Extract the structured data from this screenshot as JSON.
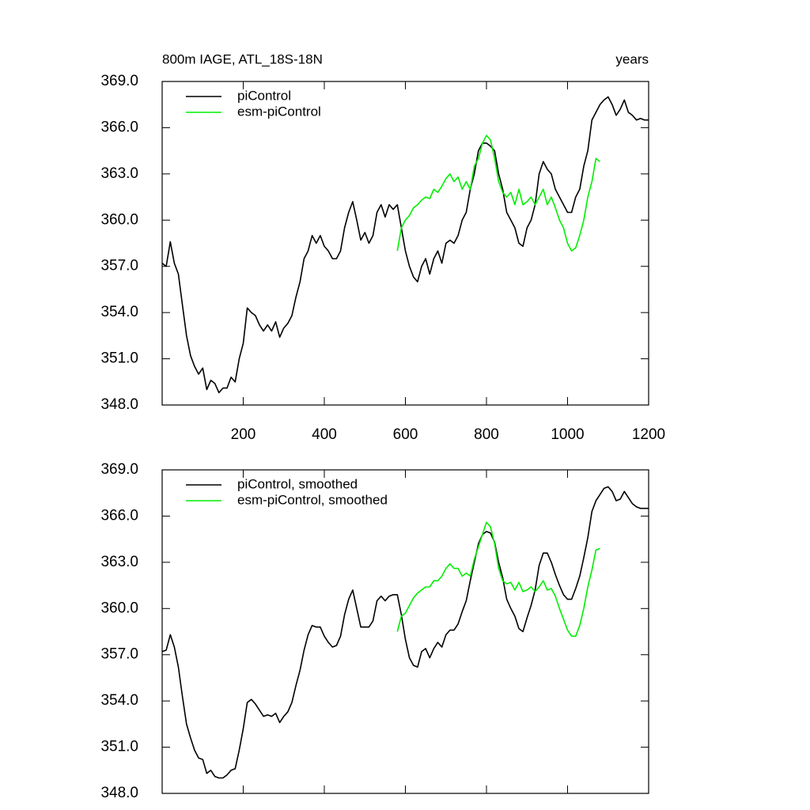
{
  "chart_data": [
    {
      "type": "line",
      "title": "800m IAGE, ATL_18S-18N",
      "x_label": "years",
      "legend": "upper left",
      "xlim": [
        0,
        1200
      ],
      "xticks": [
        200,
        400,
        600,
        800,
        1000,
        1200
      ],
      "xtick_labels": true,
      "ylim": [
        348,
        369
      ],
      "yticks": [
        {
          "value": 348,
          "label": "348.0"
        },
        {
          "value": 351,
          "label": "351.0"
        },
        {
          "value": 354,
          "label": "354.0"
        },
        {
          "value": 357,
          "label": "357.0"
        },
        {
          "value": 360,
          "label": "360.0"
        },
        {
          "value": 363,
          "label": "363.0"
        },
        {
          "value": 366,
          "label": "366.0"
        },
        {
          "value": 369,
          "label": "369.0"
        }
      ],
      "x": [
        0,
        10,
        20,
        30,
        40,
        50,
        60,
        70,
        80,
        90,
        100,
        110,
        120,
        130,
        140,
        150,
        160,
        170,
        180,
        190,
        200,
        210,
        220,
        230,
        240,
        250,
        260,
        270,
        280,
        290,
        300,
        310,
        320,
        330,
        340,
        350,
        360,
        370,
        380,
        390,
        400,
        410,
        420,
        430,
        440,
        450,
        460,
        470,
        480,
        490,
        500,
        510,
        520,
        530,
        540,
        550,
        560,
        570,
        580,
        590,
        600,
        610,
        620,
        630,
        640,
        650,
        660,
        670,
        680,
        690,
        700,
        710,
        720,
        730,
        740,
        750,
        760,
        770,
        780,
        790,
        800,
        810,
        820,
        830,
        840,
        850,
        860,
        870,
        880,
        890,
        900,
        910,
        920,
        930,
        940,
        950,
        960,
        970,
        980,
        990,
        1000,
        1010,
        1020,
        1030,
        1040,
        1050,
        1060,
        1070,
        1080,
        1090,
        1100,
        1110,
        1120,
        1130,
        1140,
        1150,
        1160,
        1170,
        1180,
        1190,
        1200
      ],
      "series": [
        {
          "name": "piControl",
          "color": "#000000",
          "values": [
            357.2,
            357.0,
            358.6,
            357.2,
            356.5,
            354.5,
            352.5,
            351.2,
            350.5,
            350.0,
            350.4,
            349.0,
            349.6,
            349.4,
            348.8,
            349.1,
            349.1,
            349.8,
            349.5,
            351.0,
            352.0,
            354.3,
            354.0,
            353.8,
            353.2,
            352.8,
            353.2,
            352.8,
            353.4,
            352.4,
            353.0,
            353.3,
            353.8,
            355.0,
            356.0,
            357.5,
            358.0,
            359.0,
            358.5,
            359.0,
            358.3,
            358.0,
            357.5,
            357.5,
            358.0,
            359.5,
            360.5,
            361.2,
            360.0,
            358.7,
            359.2,
            358.5,
            359.0,
            360.5,
            361.0,
            360.2,
            361.0,
            360.7,
            361.0,
            359.5,
            358.0,
            357.0,
            356.3,
            356.0,
            357.0,
            357.5,
            356.5,
            357.5,
            358.0,
            357.2,
            358.5,
            358.7,
            358.5,
            359.0,
            360.0,
            360.5,
            362.0,
            363.0,
            364.5,
            365.0,
            365.0,
            364.8,
            364.5,
            363.0,
            362.0,
            360.5,
            360.0,
            359.5,
            358.5,
            358.3,
            359.5,
            360.0,
            361.0,
            363.0,
            363.8,
            363.3,
            363.0,
            362.0,
            361.5,
            361.0,
            360.5,
            360.5,
            361.5,
            362.0,
            363.5,
            364.5,
            366.5,
            367.0,
            367.5,
            367.8,
            368.0,
            367.5,
            366.8,
            367.2,
            367.8,
            367.0,
            366.8,
            366.5,
            366.6,
            366.5,
            366.5
          ]
        },
        {
          "name": "esm-piControl",
          "color": "#00ee00",
          "values": [
            null,
            null,
            null,
            null,
            null,
            null,
            null,
            null,
            null,
            null,
            null,
            null,
            null,
            null,
            null,
            null,
            null,
            null,
            null,
            null,
            null,
            null,
            null,
            null,
            null,
            null,
            null,
            null,
            null,
            null,
            null,
            null,
            null,
            null,
            null,
            null,
            null,
            null,
            null,
            null,
            null,
            null,
            null,
            null,
            null,
            null,
            null,
            null,
            null,
            null,
            null,
            null,
            null,
            null,
            null,
            null,
            null,
            null,
            358.0,
            359.5,
            360.0,
            360.3,
            360.8,
            361.0,
            361.3,
            361.5,
            361.4,
            362.0,
            361.8,
            362.2,
            362.7,
            363.0,
            362.5,
            362.8,
            362.0,
            362.5,
            362.0,
            363.5,
            364.0,
            365.0,
            365.5,
            365.2,
            364.0,
            362.5,
            361.8,
            361.5,
            361.8,
            361.0,
            362.0,
            361.0,
            361.2,
            361.5,
            361.0,
            361.5,
            362.0,
            361.0,
            361.5,
            360.8,
            360.0,
            359.5,
            358.5,
            358.0,
            358.2,
            359.0,
            360.0,
            361.5,
            362.5,
            364.0,
            363.8,
            null,
            null,
            null,
            null,
            null,
            null,
            null,
            null,
            null,
            null,
            null,
            null
          ]
        }
      ]
    },
    {
      "type": "line",
      "legend": "upper left",
      "xlim": [
        0,
        1200
      ],
      "xticks": [
        200,
        400,
        600,
        800,
        1000,
        1200
      ],
      "xtick_labels": false,
      "ylim": [
        348,
        369
      ],
      "yticks": [
        {
          "value": 348,
          "label": "348.0"
        },
        {
          "value": 351,
          "label": "351.0"
        },
        {
          "value": 354,
          "label": "354.0"
        },
        {
          "value": 357,
          "label": "357.0"
        },
        {
          "value": 360,
          "label": "360.0"
        },
        {
          "value": 363,
          "label": "363.0"
        },
        {
          "value": 366,
          "label": "366.0"
        },
        {
          "value": 369,
          "label": "369.0"
        }
      ],
      "x": [
        0,
        10,
        20,
        30,
        40,
        50,
        60,
        70,
        80,
        90,
        100,
        110,
        120,
        130,
        140,
        150,
        160,
        170,
        180,
        190,
        200,
        210,
        220,
        230,
        240,
        250,
        260,
        270,
        280,
        290,
        300,
        310,
        320,
        330,
        340,
        350,
        360,
        370,
        380,
        390,
        400,
        410,
        420,
        430,
        440,
        450,
        460,
        470,
        480,
        490,
        500,
        510,
        520,
        530,
        540,
        550,
        560,
        570,
        580,
        590,
        600,
        610,
        620,
        630,
        640,
        650,
        660,
        670,
        680,
        690,
        700,
        710,
        720,
        730,
        740,
        750,
        760,
        770,
        780,
        790,
        800,
        810,
        820,
        830,
        840,
        850,
        860,
        870,
        880,
        890,
        900,
        910,
        920,
        930,
        940,
        950,
        960,
        970,
        980,
        990,
        1000,
        1010,
        1020,
        1030,
        1040,
        1050,
        1060,
        1070,
        1080,
        1090,
        1100,
        1110,
        1120,
        1130,
        1140,
        1150,
        1160,
        1170,
        1180,
        1190,
        1200
      ],
      "series": [
        {
          "name": "piControl, smoothed",
          "color": "#000000",
          "values": [
            357.2,
            357.3,
            358.3,
            357.5,
            356.2,
            354.3,
            352.5,
            351.6,
            350.8,
            350.3,
            350.2,
            349.3,
            349.5,
            349.1,
            349.0,
            349.0,
            349.2,
            349.5,
            349.6,
            350.8,
            352.2,
            353.9,
            354.1,
            353.8,
            353.4,
            353.0,
            353.1,
            353.0,
            353.2,
            352.6,
            353.0,
            353.3,
            353.9,
            355.0,
            356.0,
            357.3,
            358.3,
            358.9,
            358.8,
            358.8,
            358.2,
            357.8,
            357.5,
            357.6,
            358.2,
            359.6,
            360.6,
            361.2,
            360.0,
            358.8,
            358.8,
            358.8,
            359.2,
            360.5,
            360.8,
            360.5,
            360.8,
            360.9,
            360.9,
            359.6,
            358.0,
            356.8,
            356.3,
            356.2,
            357.2,
            357.4,
            356.8,
            357.4,
            357.8,
            357.5,
            358.3,
            358.6,
            358.6,
            359.0,
            359.8,
            360.5,
            361.8,
            363.0,
            364.2,
            364.8,
            365.0,
            364.9,
            364.3,
            363.0,
            362.0,
            360.6,
            360.0,
            359.5,
            358.7,
            358.5,
            359.4,
            360.2,
            361.2,
            362.8,
            363.6,
            363.6,
            363.0,
            362.2,
            361.5,
            360.9,
            360.6,
            360.6,
            361.3,
            362.1,
            363.3,
            364.6,
            366.3,
            367.0,
            367.4,
            367.8,
            367.9,
            367.6,
            367.0,
            367.1,
            367.6,
            367.2,
            366.8,
            366.6,
            366.5,
            366.5,
            366.5
          ]
        },
        {
          "name": "esm-piControl, smoothed",
          "color": "#00ee00",
          "values": [
            null,
            null,
            null,
            null,
            null,
            null,
            null,
            null,
            null,
            null,
            null,
            null,
            null,
            null,
            null,
            null,
            null,
            null,
            null,
            null,
            null,
            null,
            null,
            null,
            null,
            null,
            null,
            null,
            null,
            null,
            null,
            null,
            null,
            null,
            null,
            null,
            null,
            null,
            null,
            null,
            null,
            null,
            null,
            null,
            null,
            null,
            null,
            null,
            null,
            null,
            null,
            null,
            null,
            null,
            null,
            null,
            null,
            null,
            358.5,
            359.5,
            359.7,
            360.2,
            360.7,
            361.0,
            361.2,
            361.4,
            361.4,
            361.8,
            361.8,
            362.1,
            362.6,
            362.9,
            362.6,
            362.6,
            362.1,
            362.3,
            362.1,
            363.2,
            364.0,
            364.8,
            365.6,
            365.3,
            364.2,
            362.6,
            361.8,
            361.6,
            361.7,
            361.2,
            361.7,
            361.1,
            361.2,
            361.4,
            361.1,
            361.4,
            361.8,
            361.2,
            361.3,
            360.8,
            360.0,
            359.3,
            358.6,
            358.2,
            358.2,
            358.9,
            360.0,
            361.4,
            362.5,
            363.8,
            363.9,
            null,
            null,
            null,
            null,
            null,
            null,
            null,
            null,
            null,
            null,
            null,
            null
          ]
        }
      ]
    }
  ]
}
